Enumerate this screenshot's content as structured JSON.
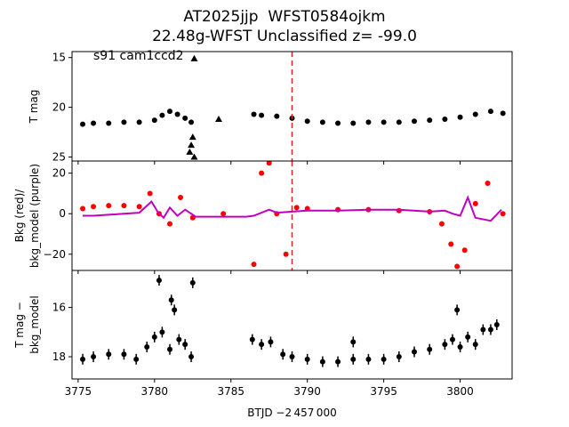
{
  "title_line1": "AT2025jjp  WFST0584ojkm",
  "title_line2": "22.48g-WFST Unclassified z= -99.0",
  "annotation": "s91 cam1ccd2",
  "xlabel": "BTJD −2 457 000",
  "xticks": [
    "3775",
    "3780",
    "3785",
    "3790",
    "3795",
    "3800"
  ],
  "colors": {
    "tmag": "#000000",
    "bkg": "#ff0000",
    "bkg_model": "#bf00bf",
    "marker_line": "#d62728"
  },
  "chart_data": [
    {
      "type": "scatter",
      "ylabel": "T mag",
      "xlim": [
        3774.6,
        3803.4
      ],
      "ylim": [
        25.4,
        14.4
      ],
      "inverted_y": true,
      "yticks": [
        "15",
        "20",
        "25"
      ],
      "vline_x": 3789.0,
      "series": [
        {
          "label": "T mag",
          "x": [
            3775.3,
            3776,
            3777,
            3778,
            3779,
            3780,
            3780.5,
            3781,
            3781.5,
            3782,
            3782.4,
            3786.5,
            3787,
            3788,
            3789,
            3790,
            3791,
            3792,
            3793,
            3794,
            3795,
            3796,
            3797,
            3798,
            3799,
            3800,
            3801,
            3802,
            3802.8
          ],
          "y": [
            21.7,
            21.6,
            21.6,
            21.5,
            21.5,
            21.3,
            20.8,
            20.4,
            20.7,
            21.1,
            21.5,
            20.7,
            20.8,
            20.9,
            21.1,
            21.4,
            21.5,
            21.6,
            21.6,
            21.5,
            21.5,
            21.5,
            21.4,
            21.3,
            21.2,
            21.0,
            20.7,
            20.4,
            20.6
          ]
        },
        {
          "label": "outliers",
          "x": [
            3782.3,
            3782.4,
            3782.5,
            3782.6,
            3784.2,
            3782.6
          ],
          "y": [
            24.5,
            23.8,
            23.0,
            25.0,
            21.2,
            15.1
          ]
        }
      ]
    },
    {
      "type": "scatter",
      "ylabel": "Bkg (red)/\nbkg_model (purple)",
      "xlim": [
        3774.6,
        3803.4
      ],
      "ylim": [
        -28,
        26
      ],
      "yticks": [
        "20",
        "0",
        "−20"
      ],
      "vline_x": 3789.0,
      "series": [
        {
          "name": "Bkg (red)",
          "x": [
            3775.3,
            3776,
            3777,
            3778,
            3779,
            3779.7,
            3780.3,
            3781,
            3781.7,
            3782.5,
            3784.5,
            3786.5,
            3787,
            3787.5,
            3788,
            3788.6,
            3789.3,
            3790,
            3792,
            3794,
            3796,
            3798,
            3798.8,
            3799.4,
            3799.8,
            3800.3,
            3801,
            3801.8,
            3802.8
          ],
          "y": [
            2.5,
            3.5,
            4.0,
            4.0,
            3.5,
            10,
            0,
            -5,
            8,
            -2,
            0,
            -25,
            20,
            25,
            0,
            -20,
            3.0,
            2.5,
            2.0,
            2.0,
            1.5,
            1.0,
            -5,
            -15,
            -26,
            -18,
            5,
            15,
            0
          ]
        },
        {
          "name": "bkg_model (purple)",
          "x": [
            3775.3,
            3776,
            3777,
            3778,
            3779,
            3779.8,
            3780.2,
            3780.6,
            3781,
            3781.5,
            3782,
            3782.7,
            3784,
            3786,
            3786.5,
            3787.5,
            3788,
            3789,
            3790,
            3792,
            3794,
            3796,
            3798,
            3799,
            3799.5,
            3800,
            3800.5,
            3801,
            3802,
            3802.7
          ],
          "y": [
            -1.0,
            -1.0,
            -0.5,
            0.0,
            0.5,
            6.0,
            1.0,
            -2.0,
            3.0,
            -1.0,
            2.0,
            -1.5,
            -1.5,
            -1.5,
            -1.0,
            2.0,
            0.5,
            1.0,
            1.5,
            1.5,
            2.0,
            2.0,
            1.0,
            1.5,
            0.0,
            -1.0,
            8.0,
            -2.0,
            -3.5,
            2.0
          ]
        }
      ]
    },
    {
      "type": "scatter",
      "ylabel": "T mag −\nbkg_model",
      "xlim": [
        3774.6,
        3803.4
      ],
      "ylim": [
        18.9,
        14.5
      ],
      "inverted_y": true,
      "yticks": [
        "16",
        "18"
      ],
      "series": [
        {
          "label": "T mag − bkg_model",
          "x": [
            3775.3,
            3776,
            3777,
            3778,
            3778.8,
            3779.5,
            3780,
            3780.5,
            3781,
            3781.3,
            3781.6,
            3782,
            3782.4,
            3786.4,
            3787,
            3787.6,
            3788.4,
            3789,
            3790,
            3791,
            3792,
            3793,
            3794,
            3795,
            3796,
            3797,
            3798,
            3799,
            3799.5,
            3800,
            3800.5,
            3801,
            3801.5,
            3802,
            3802.4,
            3780.3,
            3782.5,
            3781.1,
            3793,
            3799.8
          ],
          "y": [
            18.1,
            18.0,
            17.9,
            17.9,
            18.1,
            17.6,
            17.2,
            17.0,
            17.7,
            16.1,
            17.3,
            17.5,
            18.0,
            17.3,
            17.5,
            17.4,
            17.9,
            18.0,
            18.1,
            18.2,
            18.2,
            18.1,
            18.1,
            18.1,
            18.0,
            17.8,
            17.7,
            17.5,
            17.3,
            17.6,
            17.2,
            17.5,
            16.9,
            16.9,
            16.7,
            14.9,
            15.0,
            15.7,
            17.4,
            16.1
          ]
        }
      ]
    }
  ]
}
